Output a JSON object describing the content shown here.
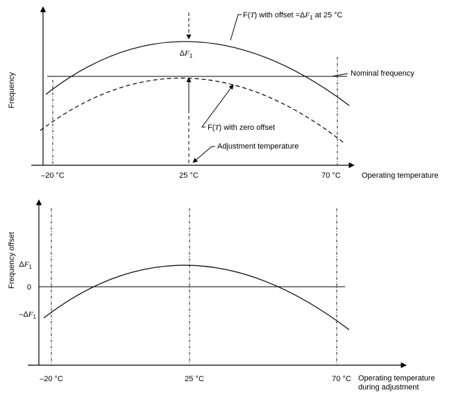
{
  "top": {
    "ylabel": "Frequency",
    "xlabel": "Operating temperature",
    "ticks": [
      "–20 °C",
      "25 °C",
      "70 °C"
    ],
    "offset_curve_label": {
      "pre": "F(",
      "var": "T",
      "mid": ") with offset =Δ",
      "sym": "F",
      "sub": "1",
      "post": " at 25 °C"
    },
    "zero_curve_label": {
      "pre": "F(",
      "var": "T",
      "post": ") with zero offset"
    },
    "nominal_label": "Nominal frequency",
    "adjustment_label": "Adjustment temperature",
    "delta_label": {
      "pre": "Δ",
      "sym": "F",
      "sub": "1"
    }
  },
  "bottom": {
    "ylabel": "Frequency offset",
    "xlabel_line1": "Operating temperature",
    "xlabel_line2": "during adjustment",
    "ticks": [
      "–20 °C",
      "25 °C",
      "70 °C"
    ],
    "y_ticks": [
      {
        "pre": "Δ",
        "sym": "F",
        "sub": "1"
      },
      {
        "plain": "0"
      },
      {
        "pre": "–Δ",
        "sym": "F",
        "sub": "1"
      }
    ]
  }
}
